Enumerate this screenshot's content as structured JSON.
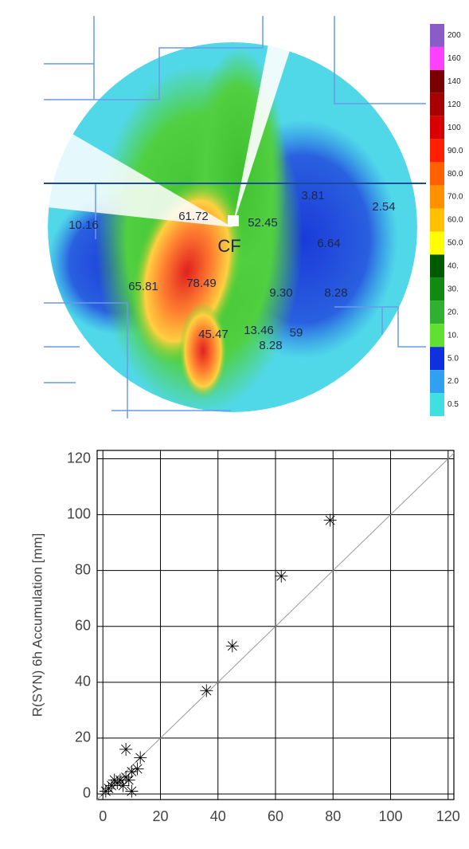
{
  "radar_map": {
    "station": "CF",
    "gauge_labels": [
      "10.16",
      "61.72",
      "52.45",
      "3.81",
      "2.54",
      "6.64",
      "65.81",
      "78.49",
      "9.30",
      "8.28",
      "45.47",
      "13.46",
      "59",
      "8.28"
    ],
    "colorbar": [
      {
        "label": "200",
        "color": "#8a5cc8"
      },
      {
        "label": "160",
        "color": "#ff40ff"
      },
      {
        "label": "140",
        "color": "#7a0000"
      },
      {
        "label": "120",
        "color": "#a80000"
      },
      {
        "label": "100",
        "color": "#d80000"
      },
      {
        "label": "90.0",
        "color": "#ff2000"
      },
      {
        "label": "80.0",
        "color": "#ff6000"
      },
      {
        "label": "70.0",
        "color": "#ff9000"
      },
      {
        "label": "60.0",
        "color": "#ffc000"
      },
      {
        "label": "50.0",
        "color": "#ffff00"
      },
      {
        "label": "40.",
        "color": "#005a00"
      },
      {
        "label": "30.",
        "color": "#108a10"
      },
      {
        "label": "20.",
        "color": "#30b030"
      },
      {
        "label": "10.",
        "color": "#60e030"
      },
      {
        "label": "5.0",
        "color": "#1030e0"
      },
      {
        "label": "2.0",
        "color": "#30a0f0"
      },
      {
        "label": "0.5",
        "color": "#40e0e0"
      }
    ]
  },
  "chart_data": {
    "type": "scatter",
    "y_label": "R(SYN) 6h Accumulation [mm]",
    "x": [
      79,
      62,
      45,
      36,
      8,
      13,
      12,
      10,
      8,
      9,
      6,
      5,
      4,
      3,
      2,
      1,
      7,
      10
    ],
    "values": [
      98,
      78,
      53,
      37,
      16,
      13,
      9,
      8,
      6,
      5,
      5,
      4,
      5,
      3,
      2,
      1,
      3,
      1
    ],
    "color": "#000000",
    "xlim": [
      -2,
      122
    ],
    "ylim": [
      -2,
      123
    ],
    "xticks": [
      0,
      20,
      40,
      60,
      80,
      100,
      120
    ],
    "yticks": [
      0,
      20,
      40,
      60,
      80,
      100,
      120
    ],
    "grid": true
  }
}
